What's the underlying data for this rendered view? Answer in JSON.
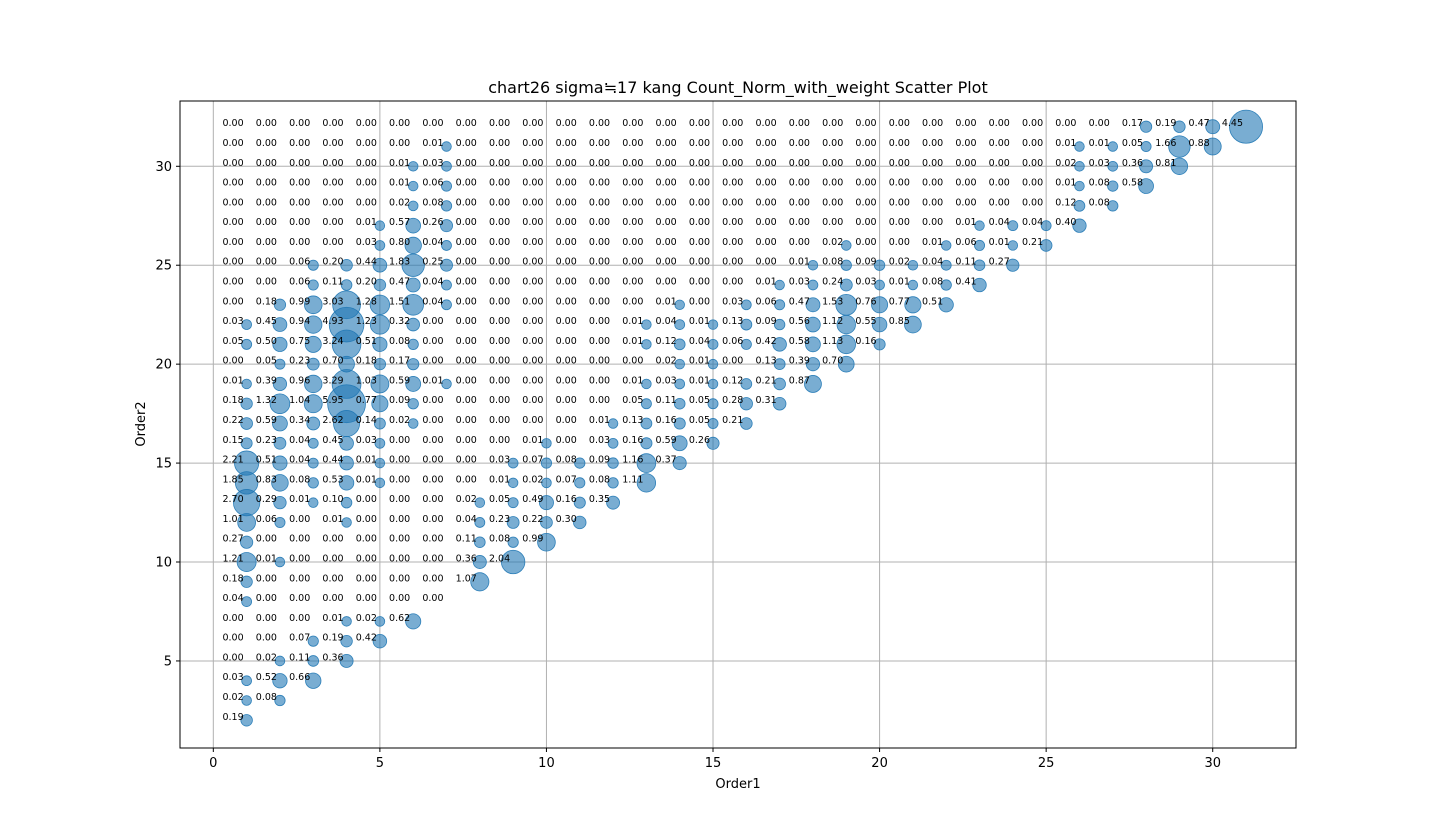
{
  "chart_data": {
    "type": "scatter",
    "title": "chart26 sigma≒17 kang Count_Norm_with_weight Scatter Plot",
    "xlabel": "Order1",
    "ylabel": "Order2",
    "xlim": [
      -1,
      32.5
    ],
    "ylim": [
      0.6,
      33.3
    ],
    "xticks": [
      0,
      5,
      10,
      15,
      20,
      25,
      30
    ],
    "yticks": [
      5,
      10,
      15,
      20,
      25,
      30
    ],
    "grid": true,
    "marker_color": "#1f77b4",
    "label_format": "two-decimal, first column trailing comma",
    "rows": [
      {
        "y": 2,
        "values": [
          0.19
        ]
      },
      {
        "y": 3,
        "values": [
          0.02,
          0.08
        ]
      },
      {
        "y": 4,
        "values": [
          0.03,
          0.52,
          0.66
        ]
      },
      {
        "y": 5,
        "values": [
          0.0,
          0.02,
          0.11,
          0.36
        ]
      },
      {
        "y": 6,
        "values": [
          0.0,
          0.0,
          0.07,
          0.19,
          0.42
        ]
      },
      {
        "y": 7,
        "values": [
          0.0,
          0.0,
          0.0,
          0.01,
          0.02,
          0.62
        ]
      },
      {
        "y": 8,
        "values": [
          0.04,
          0.0,
          0.0,
          0.0,
          0.0,
          0.0,
          0.0
        ]
      },
      {
        "y": 9,
        "values": [
          0.18,
          0.0,
          0.0,
          0.0,
          0.0,
          0.0,
          0.0,
          1.07
        ]
      },
      {
        "y": 10,
        "values": [
          1.21,
          0.01,
          0.0,
          0.0,
          0.0,
          0.0,
          0.0,
          0.36,
          2.04
        ]
      },
      {
        "y": 11,
        "values": [
          0.27,
          0.0,
          0.0,
          0.0,
          0.0,
          0.0,
          0.0,
          0.11,
          0.08,
          0.99
        ]
      },
      {
        "y": 12,
        "values": [
          1.01,
          0.06,
          0.0,
          0.01,
          0.0,
          0.0,
          0.0,
          0.04,
          0.23,
          0.22,
          0.3
        ]
      },
      {
        "y": 13,
        "values": [
          2.7,
          0.29,
          0.01,
          0.1,
          0.0,
          0.0,
          0.0,
          0.02,
          0.05,
          0.49,
          0.16,
          0.35
        ]
      },
      {
        "y": 14,
        "values": [
          1.85,
          0.83,
          0.08,
          0.53,
          0.01,
          0.0,
          0.0,
          0.0,
          0.01,
          0.02,
          0.07,
          0.08,
          1.11
        ]
      },
      {
        "y": 15,
        "values": [
          2.21,
          0.51,
          0.04,
          0.44,
          0.01,
          0.0,
          0.0,
          0.0,
          0.03,
          0.07,
          0.08,
          0.09,
          1.16,
          0.37
        ]
      },
      {
        "y": 16,
        "values": [
          0.15,
          0.23,
          0.04,
          0.45,
          0.03,
          0.0,
          0.0,
          0.0,
          0.0,
          0.01,
          0.0,
          0.03,
          0.16,
          0.59,
          0.26
        ]
      },
      {
        "y": 17,
        "values": [
          0.22,
          0.59,
          0.34,
          2.62,
          0.14,
          0.02,
          0.0,
          0.0,
          0.0,
          0.0,
          0.0,
          0.01,
          0.13,
          0.16,
          0.05,
          0.21
        ]
      },
      {
        "y": 18,
        "values": [
          0.18,
          1.32,
          1.04,
          5.95,
          0.77,
          0.09,
          0.0,
          0.0,
          0.0,
          0.0,
          0.0,
          0.0,
          0.05,
          0.11,
          0.05,
          0.28,
          0.31
        ]
      },
      {
        "y": 19,
        "values": [
          0.01,
          0.39,
          0.96,
          3.29,
          1.03,
          0.59,
          0.01,
          0.0,
          0.0,
          0.0,
          0.0,
          0.0,
          0.01,
          0.03,
          0.01,
          0.12,
          0.21,
          0.87
        ]
      },
      {
        "y": 20,
        "values": [
          0.0,
          0.05,
          0.23,
          0.7,
          0.18,
          0.17,
          0.0,
          0.0,
          0.0,
          0.0,
          0.0,
          0.0,
          0.0,
          0.02,
          0.01,
          0.0,
          0.13,
          0.39,
          0.7
        ]
      },
      {
        "y": 21,
        "values": [
          0.05,
          0.5,
          0.75,
          3.24,
          0.51,
          0.08,
          0.0,
          0.0,
          0.0,
          0.0,
          0.0,
          0.0,
          0.01,
          0.12,
          0.04,
          0.06,
          0.42,
          0.58,
          1.13,
          0.16
        ]
      },
      {
        "y": 22,
        "values": [
          0.03,
          0.45,
          0.94,
          4.93,
          1.23,
          0.32,
          0.0,
          0.0,
          0.0,
          0.0,
          0.0,
          0.0,
          0.01,
          0.04,
          0.01,
          0.13,
          0.09,
          0.56,
          1.12,
          0.55,
          0.85
        ]
      },
      {
        "y": 23,
        "values": [
          0.0,
          0.18,
          0.99,
          3.03,
          1.28,
          1.51,
          0.04,
          0.0,
          0.0,
          0.0,
          0.0,
          0.0,
          0.0,
          0.01,
          0.0,
          0.03,
          0.06,
          0.47,
          1.53,
          0.76,
          0.77,
          0.51
        ]
      },
      {
        "y": 24,
        "values": [
          0.0,
          0.0,
          0.06,
          0.11,
          0.2,
          0.47,
          0.04,
          0.0,
          0.0,
          0.0,
          0.0,
          0.0,
          0.0,
          0.0,
          0.0,
          0.0,
          0.01,
          0.03,
          0.24,
          0.03,
          0.01,
          0.08,
          0.41
        ]
      },
      {
        "y": 25,
        "values": [
          0.0,
          0.0,
          0.06,
          0.2,
          0.44,
          1.83,
          0.25,
          0.0,
          0.0,
          0.0,
          0.0,
          0.0,
          0.0,
          0.0,
          0.0,
          0.0,
          0.0,
          0.01,
          0.08,
          0.09,
          0.02,
          0.04,
          0.11,
          0.27
        ]
      },
      {
        "y": 26,
        "values": [
          0.0,
          0.0,
          0.0,
          0.0,
          0.03,
          0.8,
          0.04,
          0.0,
          0.0,
          0.0,
          0.0,
          0.0,
          0.0,
          0.0,
          0.0,
          0.0,
          0.0,
          0.0,
          0.02,
          0.0,
          0.0,
          0.01,
          0.06,
          0.01,
          0.21
        ]
      },
      {
        "y": 27,
        "values": [
          0.0,
          0.0,
          0.0,
          0.0,
          0.01,
          0.57,
          0.26,
          0.0,
          0.0,
          0.0,
          0.0,
          0.0,
          0.0,
          0.0,
          0.0,
          0.0,
          0.0,
          0.0,
          0.0,
          0.0,
          0.0,
          0.0,
          0.01,
          0.04,
          0.04,
          0.4
        ]
      },
      {
        "y": 28,
        "values": [
          0.0,
          0.0,
          0.0,
          0.0,
          0.0,
          0.02,
          0.08,
          0.0,
          0.0,
          0.0,
          0.0,
          0.0,
          0.0,
          0.0,
          0.0,
          0.0,
          0.0,
          0.0,
          0.0,
          0.0,
          0.0,
          0.0,
          0.0,
          0.0,
          0.0,
          0.12,
          0.08
        ]
      },
      {
        "y": 29,
        "values": [
          0.0,
          0.0,
          0.0,
          0.0,
          0.0,
          0.01,
          0.06,
          0.0,
          0.0,
          0.0,
          0.0,
          0.0,
          0.0,
          0.0,
          0.0,
          0.0,
          0.0,
          0.0,
          0.0,
          0.0,
          0.0,
          0.0,
          0.0,
          0.0,
          0.0,
          0.01,
          0.08,
          0.58
        ]
      },
      {
        "y": 30,
        "values": [
          0.0,
          0.0,
          0.0,
          0.0,
          0.0,
          0.01,
          0.03,
          0.0,
          0.0,
          0.0,
          0.0,
          0.0,
          0.0,
          0.0,
          0.0,
          0.0,
          0.0,
          0.0,
          0.0,
          0.0,
          0.0,
          0.0,
          0.0,
          0.0,
          0.0,
          0.02,
          0.03,
          0.36,
          0.81
        ]
      },
      {
        "y": 31,
        "values": [
          0.0,
          0.0,
          0.0,
          0.0,
          0.0,
          0.0,
          0.01,
          0.0,
          0.0,
          0.0,
          0.0,
          0.0,
          0.0,
          0.0,
          0.0,
          0.0,
          0.0,
          0.0,
          0.0,
          0.0,
          0.0,
          0.0,
          0.0,
          0.0,
          0.0,
          0.01,
          0.01,
          0.05,
          1.66,
          0.88
        ]
      },
      {
        "y": 32,
        "values": [
          0.0,
          0.0,
          0.0,
          0.0,
          0.0,
          0.0,
          0.0,
          0.0,
          0.0,
          0.0,
          0.0,
          0.0,
          0.0,
          0.0,
          0.0,
          0.0,
          0.0,
          0.0,
          0.0,
          0.0,
          0.0,
          0.0,
          0.0,
          0.0,
          0.0,
          0.0,
          0.0,
          0.17,
          0.19,
          0.47,
          4.45
        ]
      }
    ]
  }
}
